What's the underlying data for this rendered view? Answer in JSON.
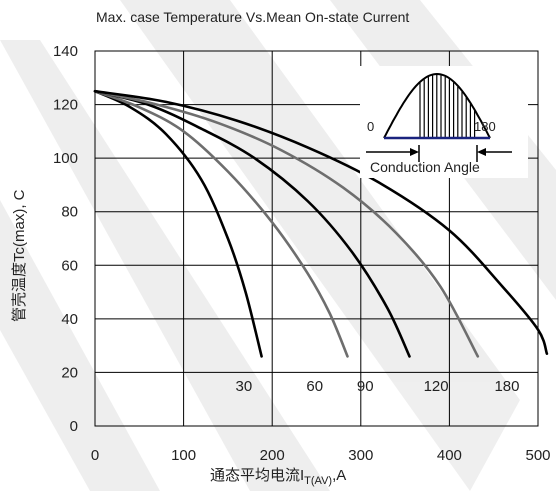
{
  "chart_data": {
    "type": "line",
    "title": "Max. case Temperature Vs.Mean On-state Current",
    "xlabel_main": "通态平均电流I",
    "xlabel_sub": "T(AV)",
    "xlabel_unit": ",A",
    "ylabel": "管壳温度Tc(max), C",
    "xlim": [
      0,
      500
    ],
    "ylim": [
      0,
      140
    ],
    "xticks": [
      "0",
      "100",
      "200",
      "300",
      "400",
      "500"
    ],
    "yticks": [
      "0",
      "20",
      "40",
      "60",
      "80",
      "100",
      "120",
      "140"
    ],
    "grid": true,
    "series": [
      {
        "name": "30",
        "points": [
          [
            0,
            125
          ],
          [
            40,
            119
          ],
          [
            80,
            109
          ],
          [
            120,
            92
          ],
          [
            150,
            70
          ],
          [
            170,
            50
          ],
          [
            188,
            26
          ]
        ]
      },
      {
        "name": "60",
        "points": [
          [
            0,
            125
          ],
          [
            50,
            119
          ],
          [
            100,
            110
          ],
          [
            150,
            95
          ],
          [
            200,
            76
          ],
          [
            240,
            57
          ],
          [
            265,
            42
          ],
          [
            285,
            26
          ]
        ]
      },
      {
        "name": "90",
        "points": [
          [
            0,
            125
          ],
          [
            60,
            120
          ],
          [
            120,
            111
          ],
          [
            180,
            100
          ],
          [
            240,
            84
          ],
          [
            290,
            65
          ],
          [
            330,
            44
          ],
          [
            355,
            26
          ]
        ]
      },
      {
        "name": "120",
        "points": [
          [
            0,
            125
          ],
          [
            70,
            120
          ],
          [
            140,
            113
          ],
          [
            210,
            103
          ],
          [
            280,
            89
          ],
          [
            340,
            72
          ],
          [
            390,
            52
          ],
          [
            432,
            26
          ]
        ]
      },
      {
        "name": "180",
        "points": [
          [
            0,
            125
          ],
          [
            80,
            121
          ],
          [
            160,
            114
          ],
          [
            240,
            104
          ],
          [
            320,
            91
          ],
          [
            400,
            73
          ],
          [
            460,
            52
          ],
          [
            500,
            36
          ],
          [
            510,
            27
          ]
        ]
      }
    ],
    "series_colors": [
      "#000000",
      "#6e6e6e",
      "#000000",
      "#6e6e6e",
      "#000000"
    ],
    "series_labels": [
      {
        "text": "30",
        "x": 168,
        "y": 13
      },
      {
        "text": "60",
        "x": 248,
        "y": 13
      },
      {
        "text": "90",
        "x": 305,
        "y": 13
      },
      {
        "text": "120",
        "x": 385,
        "y": 13
      },
      {
        "text": "180",
        "x": 465,
        "y": 13
      }
    ],
    "inset": {
      "label_left": "0",
      "label_right": "180",
      "caption": "Conduction Angle"
    }
  }
}
